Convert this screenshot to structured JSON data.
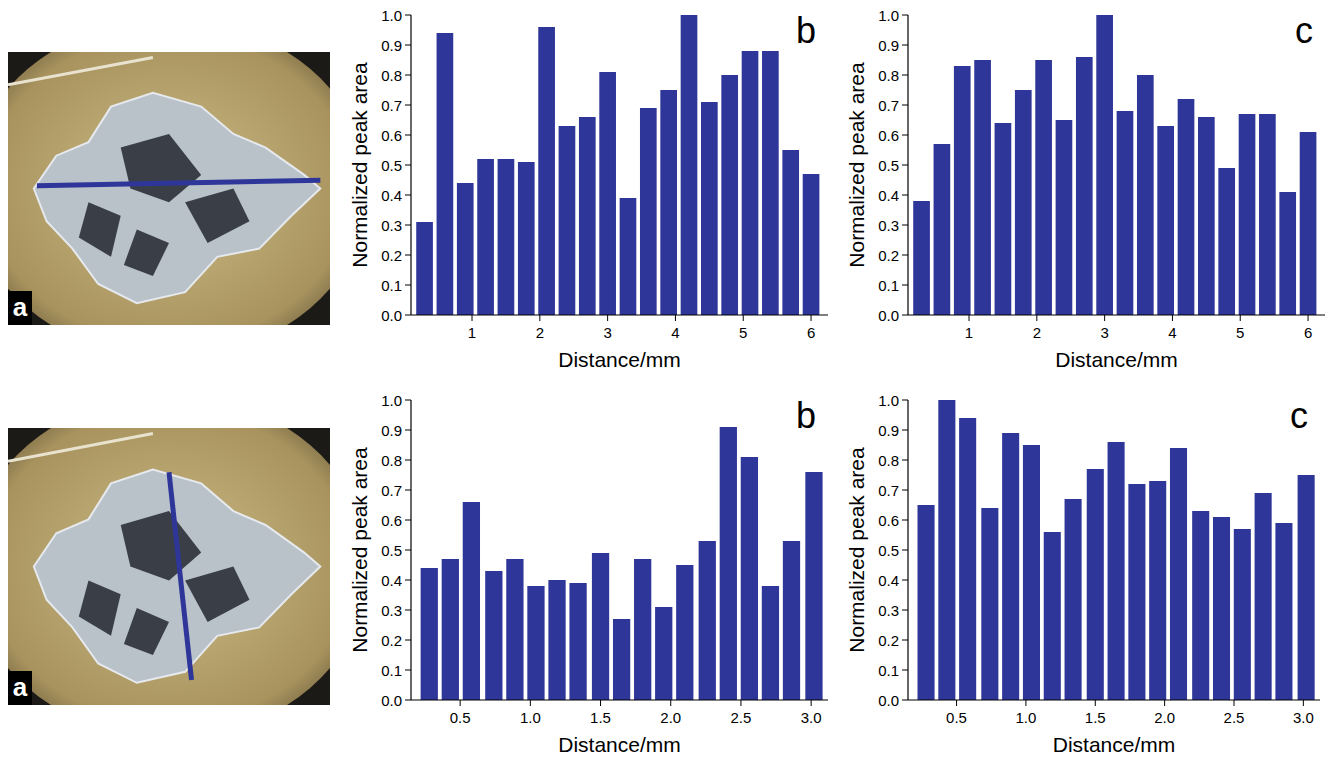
{
  "images": [
    {
      "label": "a"
    },
    {
      "label": "a"
    }
  ],
  "chart_data": [
    {
      "type": "bar",
      "panel_label": "b",
      "x_label": "Distance/mm",
      "y_label": "Normalized peak area",
      "color": "#2f3699",
      "x": [
        0.3,
        0.6,
        0.9,
        1.2,
        1.5,
        1.8,
        2.1,
        2.4,
        2.7,
        3.0,
        3.3,
        3.6,
        3.9,
        4.2,
        4.5,
        4.8,
        5.1,
        5.4,
        5.7,
        6.0
      ],
      "values": [
        0.31,
        0.94,
        0.44,
        0.52,
        0.52,
        0.51,
        0.96,
        0.63,
        0.66,
        0.81,
        0.39,
        0.69,
        0.75,
        1.0,
        0.71,
        0.8,
        0.88,
        0.88,
        0.55,
        0.47
      ],
      "xlim": [
        0.1,
        6.25
      ],
      "xticks": [
        1,
        2,
        3,
        4,
        5,
        6
      ],
      "ylim": [
        0,
        1
      ],
      "yticks": [
        {
          "value": 0,
          "label": "0.0"
        },
        0.1,
        0.2,
        0.3,
        0.4,
        0.5,
        0.6,
        0.7,
        0.8,
        0.9,
        {
          "value": 1,
          "label": "1.0"
        }
      ],
      "grid": false
    },
    {
      "type": "bar",
      "panel_label": "c",
      "x_label": "Distance/mm",
      "y_label": "Normalized peak area",
      "color": "#2f3699",
      "x": [
        0.3,
        0.6,
        0.9,
        1.2,
        1.5,
        1.8,
        2.1,
        2.4,
        2.7,
        3.0,
        3.3,
        3.6,
        3.9,
        4.2,
        4.5,
        4.8,
        5.1,
        5.4,
        5.7,
        6.0
      ],
      "values": [
        0.38,
        0.57,
        0.83,
        0.85,
        0.64,
        0.75,
        0.85,
        0.65,
        0.86,
        1.0,
        0.68,
        0.8,
        0.63,
        0.72,
        0.66,
        0.49,
        0.67,
        0.67,
        0.41,
        0.61
      ],
      "xlim": [
        0.1,
        6.25
      ],
      "xticks": [
        1,
        2,
        3,
        4,
        5,
        6
      ],
      "ylim": [
        0,
        1
      ],
      "yticks": [
        {
          "value": 0,
          "label": "0.0"
        },
        0.1,
        0.2,
        0.3,
        0.4,
        0.5,
        0.6,
        0.7,
        0.8,
        0.9,
        {
          "value": 1,
          "label": "1.0"
        }
      ],
      "grid": false
    },
    {
      "type": "bar",
      "panel_label": "b",
      "x_label": "Distance/mm",
      "y_label": "Normalized peak area",
      "color": "#2f3699",
      "x": [
        0.28,
        0.43,
        0.58,
        0.74,
        0.89,
        1.04,
        1.19,
        1.34,
        1.5,
        1.65,
        1.8,
        1.95,
        2.1,
        2.26,
        2.41,
        2.56,
        2.71,
        2.86,
        3.02
      ],
      "values": [
        0.44,
        0.47,
        0.66,
        0.43,
        0.47,
        0.38,
        0.4,
        0.39,
        0.49,
        0.27,
        0.47,
        0.31,
        0.45,
        0.53,
        0.91,
        0.81,
        0.38,
        0.53,
        0.76
      ],
      "xlim": [
        0.15,
        3.12
      ],
      "xticks": [
        0.5,
        {
          "value": 1,
          "label": "1.0"
        },
        1.5,
        {
          "value": 2,
          "label": "2.0"
        },
        2.5,
        {
          "value": 3,
          "label": "3.0"
        }
      ],
      "ylim": [
        0,
        1
      ],
      "yticks": [
        {
          "value": 0,
          "label": "0.0"
        },
        0.1,
        0.2,
        0.3,
        0.4,
        0.5,
        0.6,
        0.7,
        0.8,
        0.9,
        {
          "value": 1,
          "label": "1.0"
        }
      ],
      "grid": false
    },
    {
      "type": "bar",
      "panel_label": "c",
      "x_label": "Distance/mm",
      "y_label": "Normalized peak area",
      "color": "#2f3699",
      "x": [
        0.28,
        0.43,
        0.58,
        0.74,
        0.89,
        1.04,
        1.19,
        1.34,
        1.5,
        1.65,
        1.8,
        1.95,
        2.1,
        2.26,
        2.41,
        2.56,
        2.71,
        2.86,
        3.02
      ],
      "values": [
        0.65,
        1.0,
        0.94,
        0.64,
        0.89,
        0.85,
        0.56,
        0.67,
        0.77,
        0.86,
        0.72,
        0.73,
        0.84,
        0.63,
        0.61,
        0.57,
        0.69,
        0.59,
        0.75
      ],
      "xlim": [
        0.15,
        3.12
      ],
      "xticks": [
        0.5,
        {
          "value": 1,
          "label": "1.0"
        },
        1.5,
        {
          "value": 2,
          "label": "2.0"
        },
        2.5,
        {
          "value": 3,
          "label": "3.0"
        }
      ],
      "ylim": [
        0,
        1
      ],
      "yticks": [
        {
          "value": 0,
          "label": "0.0"
        },
        0.1,
        0.2,
        0.3,
        0.4,
        0.5,
        0.6,
        0.7,
        0.8,
        0.9,
        {
          "value": 1,
          "label": "1.0"
        }
      ],
      "grid": false
    }
  ]
}
